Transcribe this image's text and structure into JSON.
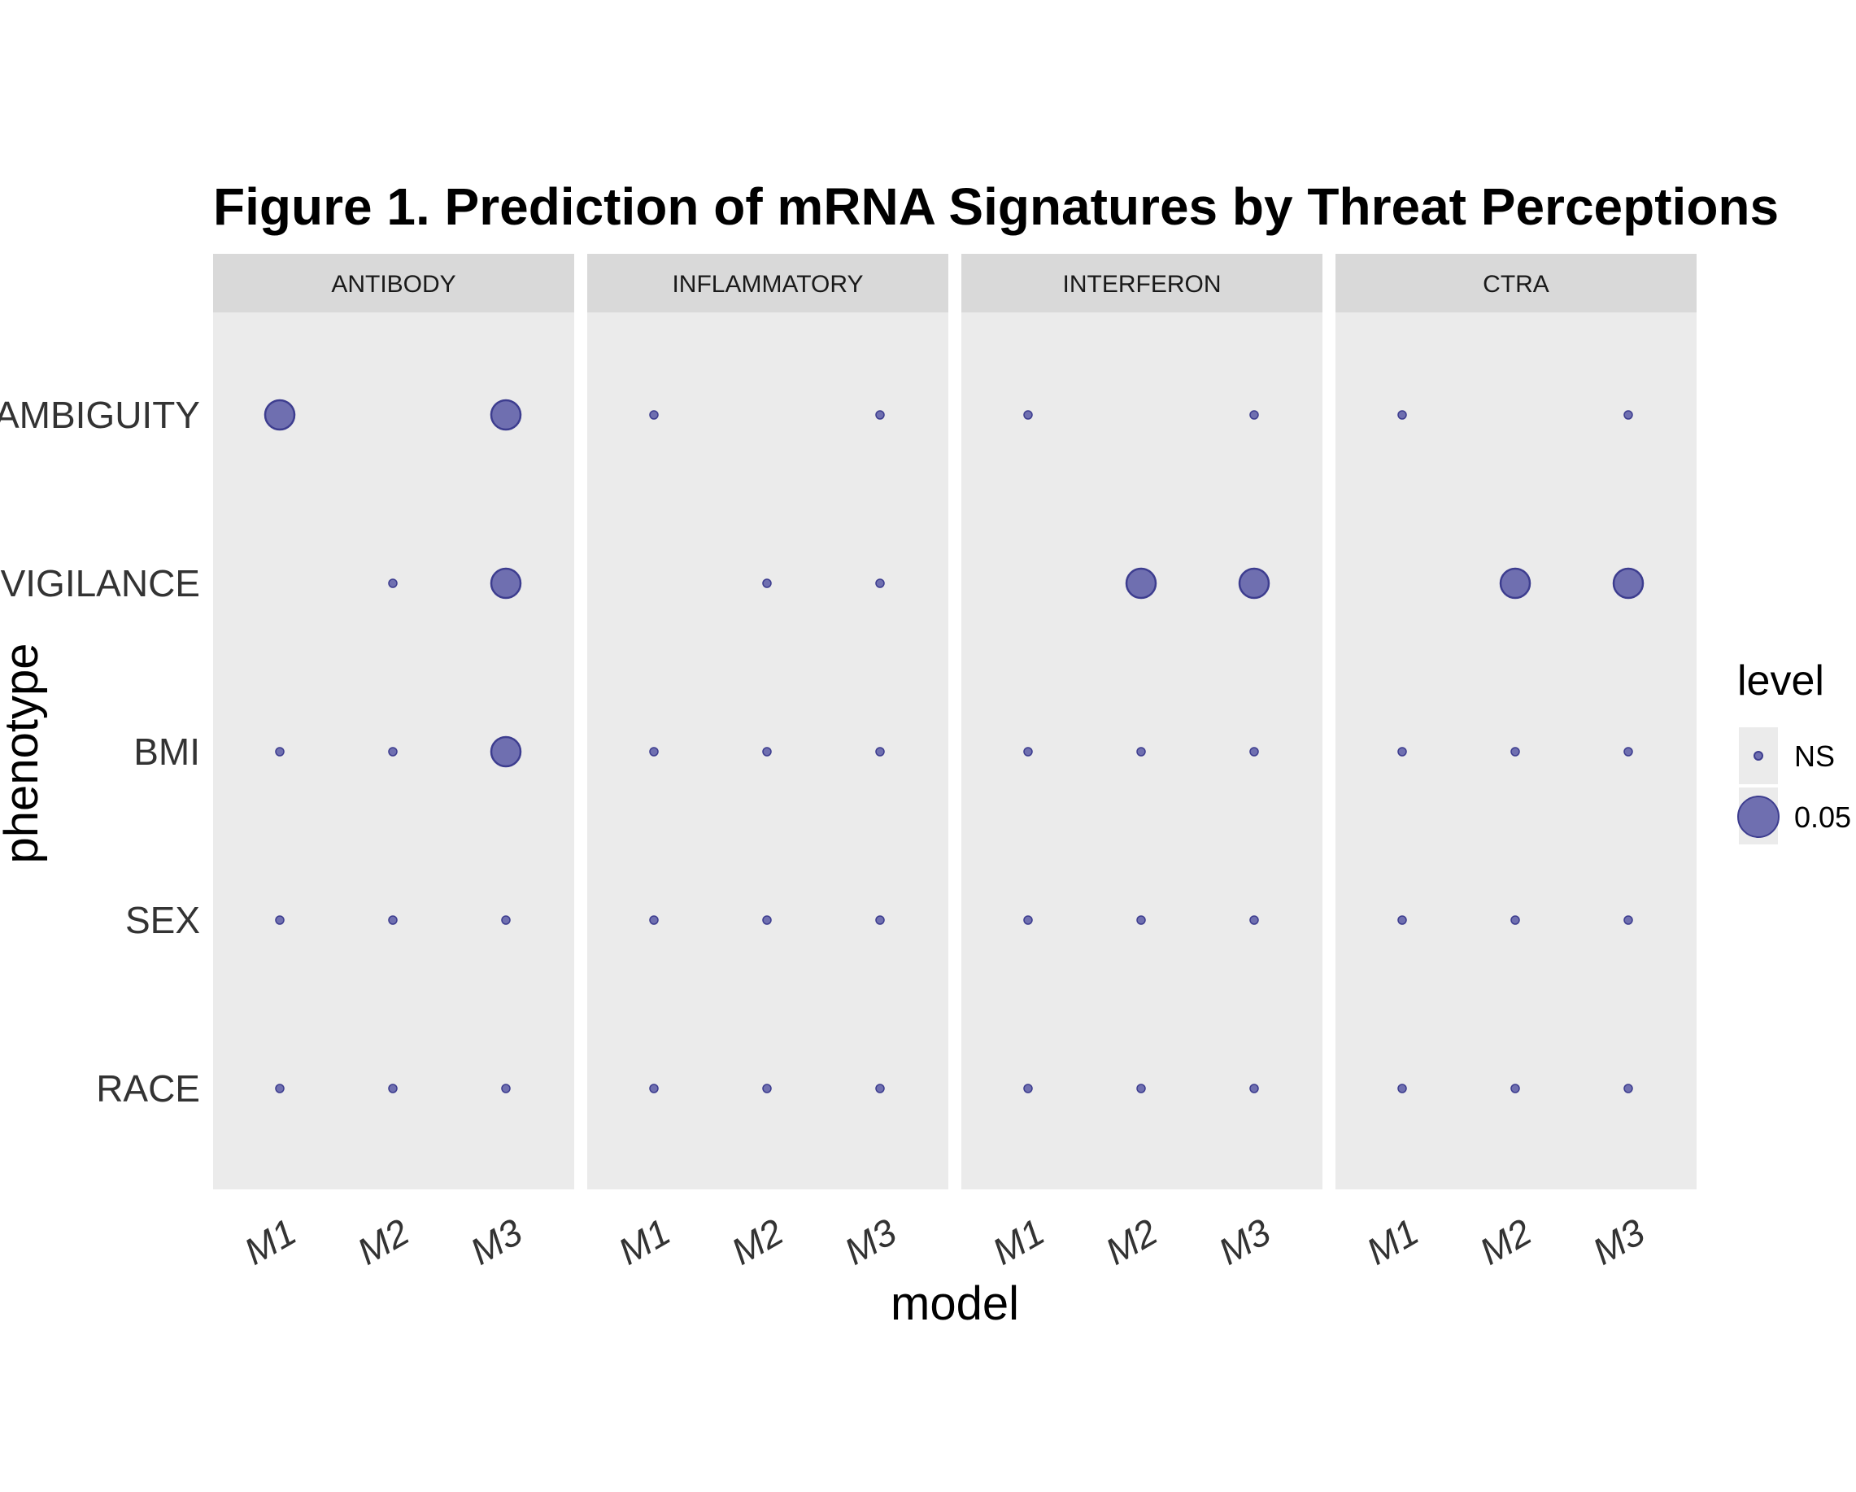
{
  "chart_data": {
    "type": "scatter",
    "title": "Figure 1. Prediction of mRNA Signatures by Threat Perceptions",
    "xlabel": "model",
    "ylabel": "phenotype",
    "facets": [
      "ANTIBODY",
      "INFLAMMATORY",
      "INTERFERON",
      "CTRA"
    ],
    "x_categories": [
      "M1",
      "M2",
      "M3"
    ],
    "y_categories": [
      "AMBIGUITY",
      "VIGILANCE",
      "BMI",
      "SEX",
      "RACE"
    ],
    "legend": {
      "title": "level",
      "position": "right",
      "entries": [
        {
          "label": "NS",
          "size": "small"
        },
        {
          "label": "0.05",
          "size": "large"
        }
      ]
    },
    "point_color": "#6F6FB0",
    "point_stroke": "#3D3D8F",
    "panel_background": "#EBEBEB",
    "strip_background": "#D9D9D9",
    "grid": false,
    "points": [
      {
        "facet": "ANTIBODY",
        "phenotype": "AMBIGUITY",
        "model": "M1",
        "level": "0.05"
      },
      {
        "facet": "ANTIBODY",
        "phenotype": "AMBIGUITY",
        "model": "M3",
        "level": "0.05"
      },
      {
        "facet": "ANTIBODY",
        "phenotype": "VIGILANCE",
        "model": "M2",
        "level": "NS"
      },
      {
        "facet": "ANTIBODY",
        "phenotype": "VIGILANCE",
        "model": "M3",
        "level": "0.05"
      },
      {
        "facet": "ANTIBODY",
        "phenotype": "BMI",
        "model": "M1",
        "level": "NS"
      },
      {
        "facet": "ANTIBODY",
        "phenotype": "BMI",
        "model": "M2",
        "level": "NS"
      },
      {
        "facet": "ANTIBODY",
        "phenotype": "BMI",
        "model": "M3",
        "level": "0.05"
      },
      {
        "facet": "ANTIBODY",
        "phenotype": "SEX",
        "model": "M1",
        "level": "NS"
      },
      {
        "facet": "ANTIBODY",
        "phenotype": "SEX",
        "model": "M2",
        "level": "NS"
      },
      {
        "facet": "ANTIBODY",
        "phenotype": "SEX",
        "model": "M3",
        "level": "NS"
      },
      {
        "facet": "ANTIBODY",
        "phenotype": "RACE",
        "model": "M1",
        "level": "NS"
      },
      {
        "facet": "ANTIBODY",
        "phenotype": "RACE",
        "model": "M2",
        "level": "NS"
      },
      {
        "facet": "ANTIBODY",
        "phenotype": "RACE",
        "model": "M3",
        "level": "NS"
      },
      {
        "facet": "INFLAMMATORY",
        "phenotype": "AMBIGUITY",
        "model": "M1",
        "level": "NS"
      },
      {
        "facet": "INFLAMMATORY",
        "phenotype": "AMBIGUITY",
        "model": "M3",
        "level": "NS"
      },
      {
        "facet": "INFLAMMATORY",
        "phenotype": "VIGILANCE",
        "model": "M2",
        "level": "NS"
      },
      {
        "facet": "INFLAMMATORY",
        "phenotype": "VIGILANCE",
        "model": "M3",
        "level": "NS"
      },
      {
        "facet": "INFLAMMATORY",
        "phenotype": "BMI",
        "model": "M1",
        "level": "NS"
      },
      {
        "facet": "INFLAMMATORY",
        "phenotype": "BMI",
        "model": "M2",
        "level": "NS"
      },
      {
        "facet": "INFLAMMATORY",
        "phenotype": "BMI",
        "model": "M3",
        "level": "NS"
      },
      {
        "facet": "INFLAMMATORY",
        "phenotype": "SEX",
        "model": "M1",
        "level": "NS"
      },
      {
        "facet": "INFLAMMATORY",
        "phenotype": "SEX",
        "model": "M2",
        "level": "NS"
      },
      {
        "facet": "INFLAMMATORY",
        "phenotype": "SEX",
        "model": "M3",
        "level": "NS"
      },
      {
        "facet": "INFLAMMATORY",
        "phenotype": "RACE",
        "model": "M1",
        "level": "NS"
      },
      {
        "facet": "INFLAMMATORY",
        "phenotype": "RACE",
        "model": "M2",
        "level": "NS"
      },
      {
        "facet": "INFLAMMATORY",
        "phenotype": "RACE",
        "model": "M3",
        "level": "NS"
      },
      {
        "facet": "INTERFERON",
        "phenotype": "AMBIGUITY",
        "model": "M1",
        "level": "NS"
      },
      {
        "facet": "INTERFERON",
        "phenotype": "AMBIGUITY",
        "model": "M3",
        "level": "NS"
      },
      {
        "facet": "INTERFERON",
        "phenotype": "VIGILANCE",
        "model": "M2",
        "level": "0.05"
      },
      {
        "facet": "INTERFERON",
        "phenotype": "VIGILANCE",
        "model": "M3",
        "level": "0.05"
      },
      {
        "facet": "INTERFERON",
        "phenotype": "BMI",
        "model": "M1",
        "level": "NS"
      },
      {
        "facet": "INTERFERON",
        "phenotype": "BMI",
        "model": "M2",
        "level": "NS"
      },
      {
        "facet": "INTERFERON",
        "phenotype": "BMI",
        "model": "M3",
        "level": "NS"
      },
      {
        "facet": "INTERFERON",
        "phenotype": "SEX",
        "model": "M1",
        "level": "NS"
      },
      {
        "facet": "INTERFERON",
        "phenotype": "SEX",
        "model": "M2",
        "level": "NS"
      },
      {
        "facet": "INTERFERON",
        "phenotype": "SEX",
        "model": "M3",
        "level": "NS"
      },
      {
        "facet": "INTERFERON",
        "phenotype": "RACE",
        "model": "M1",
        "level": "NS"
      },
      {
        "facet": "INTERFERON",
        "phenotype": "RACE",
        "model": "M2",
        "level": "NS"
      },
      {
        "facet": "INTERFERON",
        "phenotype": "RACE",
        "model": "M3",
        "level": "NS"
      },
      {
        "facet": "CTRA",
        "phenotype": "AMBIGUITY",
        "model": "M1",
        "level": "NS"
      },
      {
        "facet": "CTRA",
        "phenotype": "AMBIGUITY",
        "model": "M3",
        "level": "NS"
      },
      {
        "facet": "CTRA",
        "phenotype": "VIGILANCE",
        "model": "M2",
        "level": "0.05"
      },
      {
        "facet": "CTRA",
        "phenotype": "VIGILANCE",
        "model": "M3",
        "level": "0.05"
      },
      {
        "facet": "CTRA",
        "phenotype": "BMI",
        "model": "M1",
        "level": "NS"
      },
      {
        "facet": "CTRA",
        "phenotype": "BMI",
        "model": "M2",
        "level": "NS"
      },
      {
        "facet": "CTRA",
        "phenotype": "BMI",
        "model": "M3",
        "level": "NS"
      },
      {
        "facet": "CTRA",
        "phenotype": "SEX",
        "model": "M1",
        "level": "NS"
      },
      {
        "facet": "CTRA",
        "phenotype": "SEX",
        "model": "M2",
        "level": "NS"
      },
      {
        "facet": "CTRA",
        "phenotype": "SEX",
        "model": "M3",
        "level": "NS"
      },
      {
        "facet": "CTRA",
        "phenotype": "RACE",
        "model": "M1",
        "level": "NS"
      },
      {
        "facet": "CTRA",
        "phenotype": "RACE",
        "model": "M2",
        "level": "NS"
      },
      {
        "facet": "CTRA",
        "phenotype": "RACE",
        "model": "M3",
        "level": "NS"
      }
    ]
  }
}
